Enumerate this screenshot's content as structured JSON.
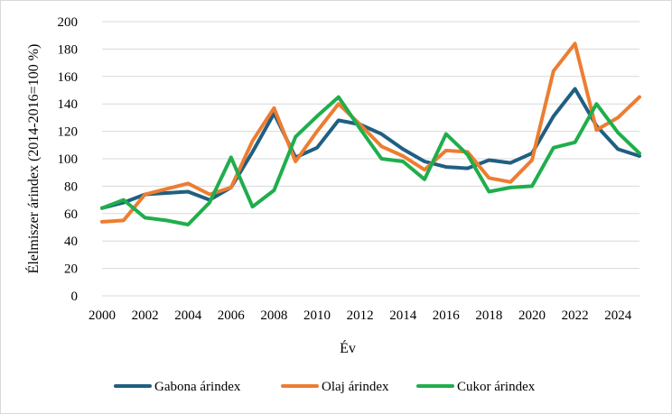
{
  "chart_data": {
    "type": "line",
    "title": "",
    "xlabel": "Év",
    "ylabel": "Élelmiszer árindex (2014-2016=100 %)",
    "xlim": [
      2000,
      2025
    ],
    "ylim": [
      0,
      200
    ],
    "y_ticks": [
      0,
      20,
      40,
      60,
      80,
      100,
      120,
      140,
      160,
      180,
      200
    ],
    "x_ticks": [
      2000,
      2002,
      2004,
      2006,
      2008,
      2010,
      2012,
      2014,
      2016,
      2018,
      2020,
      2022,
      2024
    ],
    "grid": "horizontal",
    "legend_position": "bottom",
    "x": [
      2000,
      2001,
      2002,
      2003,
      2004,
      2005,
      2006,
      2007,
      2008,
      2009,
      2010,
      2011,
      2012,
      2013,
      2014,
      2015,
      2016,
      2017,
      2018,
      2019,
      2020,
      2021,
      2022,
      2023,
      2024,
      2025
    ],
    "series": [
      {
        "name": "Gabona árindex",
        "color": "#1f5f82",
        "values": [
          64,
          68,
          74,
          75,
          76,
          70,
          79,
          105,
          133,
          101,
          108,
          128,
          125,
          118,
          107,
          98,
          94,
          93,
          99,
          97,
          104,
          131,
          151,
          124,
          107,
          102
        ]
      },
      {
        "name": "Olaj árindex",
        "color": "#ed7d31",
        "values": [
          54,
          55,
          74,
          78,
          82,
          74,
          79,
          113,
          137,
          98,
          120,
          140,
          125,
          109,
          102,
          92,
          106,
          105,
          86,
          83,
          99,
          164,
          184,
          121,
          130,
          145
        ]
      },
      {
        "name": "Cukor árindex",
        "color": "#1fae4c",
        "values": [
          64,
          70,
          57,
          55,
          52,
          68,
          101,
          65,
          77,
          116,
          131,
          145,
          122,
          100,
          98,
          85,
          118,
          103,
          76,
          79,
          80,
          108,
          112,
          140,
          119,
          104
        ]
      }
    ]
  }
}
